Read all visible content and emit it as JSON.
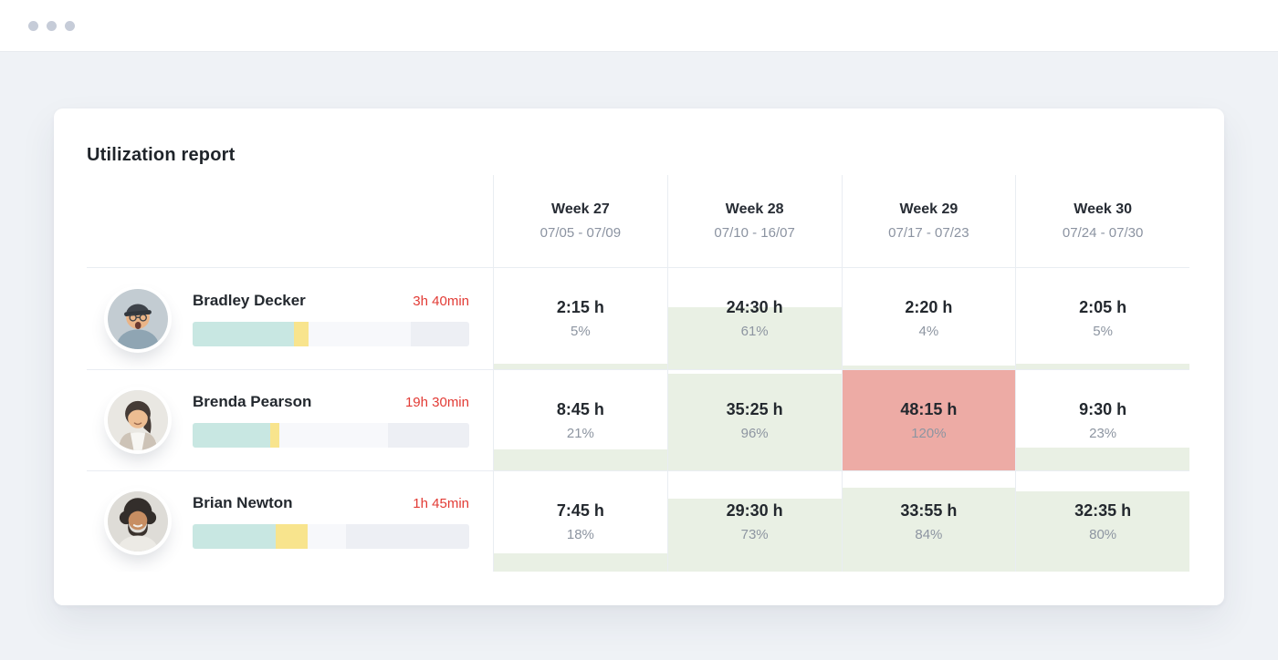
{
  "window": {
    "traffic_dots": 3
  },
  "report": {
    "title": "Utilization report",
    "weeks": [
      {
        "label": "Week 27",
        "range": "07/05 - 07/09"
      },
      {
        "label": "Week 28",
        "range": "07/10 - 16/07"
      },
      {
        "label": "Week 29",
        "range": "07/17 - 07/23"
      },
      {
        "label": "Week 30",
        "range": "07/24 - 07/30"
      }
    ],
    "members": [
      {
        "name": "Bradley Decker",
        "time_label": "3h 40min",
        "avatar": "man-with-cap",
        "bar_segments": [
          {
            "color": "#c8e7e2",
            "pct": 36.5
          },
          {
            "color": "#f8e48d",
            "pct": 5.5
          },
          {
            "color": "#f7f8fb",
            "pct": 37
          },
          {
            "color": "#edeff4",
            "pct": 21
          }
        ],
        "weekly": [
          {
            "hours": "2:15 h",
            "percent": "5%",
            "value": 5
          },
          {
            "hours": "24:30 h",
            "percent": "61%",
            "value": 61
          },
          {
            "hours": "2:20 h",
            "percent": "4%",
            "value": 4
          },
          {
            "hours": "2:05 h",
            "percent": "5%",
            "value": 5
          }
        ]
      },
      {
        "name": "Brenda Pearson",
        "time_label": "19h 30min",
        "avatar": "woman-dark-hair",
        "bar_segments": [
          {
            "color": "#c8e7e2",
            "pct": 28
          },
          {
            "color": "#f8e48d",
            "pct": 3.5
          },
          {
            "color": "#f7f8fb",
            "pct": 39
          },
          {
            "color": "#edeff4",
            "pct": 29.5
          }
        ],
        "weekly": [
          {
            "hours": "8:45 h",
            "percent": "21%",
            "value": 21
          },
          {
            "hours": "35:25 h",
            "percent": "96%",
            "value": 96
          },
          {
            "hours": "48:15 h",
            "percent": "120%",
            "value": 120
          },
          {
            "hours": "9:30 h",
            "percent": "23%",
            "value": 23
          }
        ]
      },
      {
        "name": "Brian Newton",
        "time_label": "1h 45min",
        "avatar": "man-with-afro",
        "bar_segments": [
          {
            "color": "#c8e7e2",
            "pct": 30
          },
          {
            "color": "#f8e48d",
            "pct": 11.5
          },
          {
            "color": "#f7f8fb",
            "pct": 14
          },
          {
            "color": "#edeff4",
            "pct": 44.5
          }
        ],
        "weekly": [
          {
            "hours": "7:45 h",
            "percent": "18%",
            "value": 18
          },
          {
            "hours": "29:30 h",
            "percent": "73%",
            "value": 73
          },
          {
            "hours": "33:55 h",
            "percent": "84%",
            "value": 84
          },
          {
            "hours": "32:35 h",
            "percent": "80%",
            "value": 80
          }
        ]
      }
    ],
    "colors": {
      "fill_normal": "#e9f0e4",
      "fill_over": "#edaba5",
      "time_label_red": "#e23b35"
    }
  }
}
